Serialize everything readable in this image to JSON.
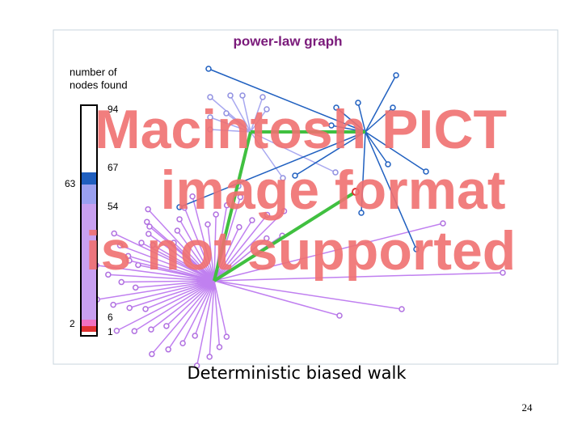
{
  "figure": {
    "title": "power-law graph",
    "legend": {
      "heading": [
        "number of",
        "nodes found"
      ],
      "labels": [
        "94",
        "67",
        "63",
        "54",
        "2",
        "6",
        "1"
      ]
    },
    "overlay": [
      "Macintosh PICT",
      "image format",
      "is not supported"
    ]
  },
  "caption": "Deterministic biased walk",
  "page_number": "24"
}
